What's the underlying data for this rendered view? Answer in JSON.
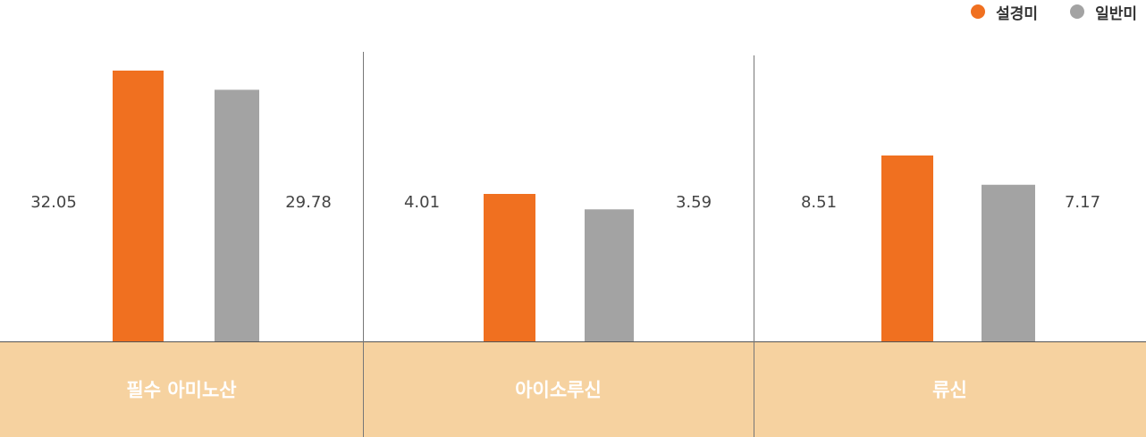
{
  "chart_data": {
    "type": "bar",
    "categories": [
      "필수 아미노산",
      "아이소루신",
      "류신"
    ],
    "series": [
      {
        "name": "설경미",
        "color": "#f07020",
        "values": [
          32.05,
          4.01,
          8.51
        ]
      },
      {
        "name": "일반미",
        "color": "#a3a3a3",
        "values": [
          29.78,
          3.59,
          7.17
        ]
      }
    ],
    "value_labels": [
      [
        "32.05",
        "4.01",
        "8.51"
      ],
      [
        "29.78",
        "3.59",
        "7.17"
      ]
    ],
    "legend_position": "top-right",
    "category_band_color": "#f6d2a0",
    "grid": false
  }
}
